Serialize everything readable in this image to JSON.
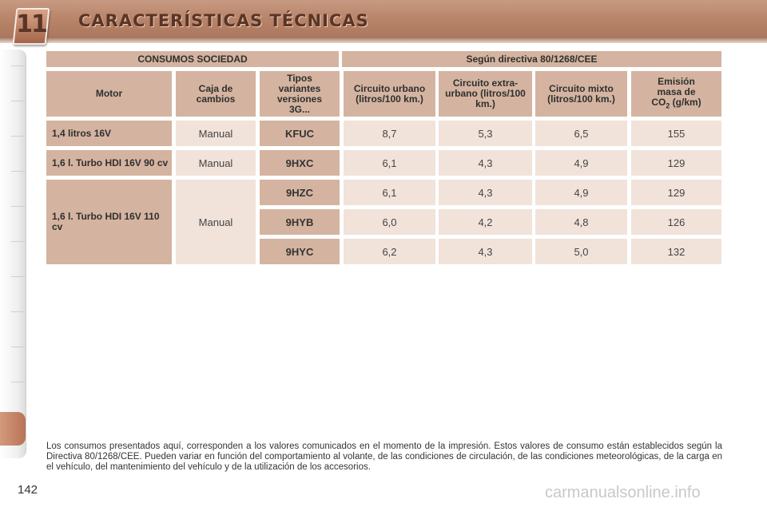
{
  "header": {
    "chapter": "11",
    "title": "CARACTERÍSTICAS TÉCNICAS"
  },
  "table": {
    "title_left": "CONSUMOS SOCIEDAD",
    "title_right": "Según directiva 80/1268/CEE",
    "col_motor": "Motor",
    "col_caja": "Caja de cambios",
    "col_tipos": "Tipos variantes versiones 3G...",
    "col_urbano": "Circuito urbano (litros/100 km.)",
    "col_extra": "Circuito extra-urbano (litros/100 km.)",
    "col_mixto": "Circuito mixto (litros/100 km.)",
    "col_emision_a": "Emisión masa de",
    "col_emision_b": "CO",
    "col_emision_sub": "2",
    "col_emision_c": " (g/km)",
    "engine1": "1,4 litros 16V",
    "engine2": "1,6 l. Turbo HDI 16V 90 cv",
    "engine3": "1,6 l. Turbo HDI 16V 110 cv",
    "rows": [
      {
        "gearbox": "Manual",
        "code": "KFUC",
        "urbano": "8,7",
        "extra": "5,3",
        "mixto": "6,5",
        "co2": "155"
      },
      {
        "gearbox": "Manual",
        "code": "9HXC",
        "urbano": "6,1",
        "extra": "4,3",
        "mixto": "4,9",
        "co2": "129"
      },
      {
        "gearbox": "Manual",
        "code": "9HZC",
        "urbano": "6,1",
        "extra": "4,3",
        "mixto": "4,9",
        "co2": "129"
      },
      {
        "code": "9HYB",
        "urbano": "6,0",
        "extra": "4,2",
        "mixto": "4,8",
        "co2": "126"
      },
      {
        "code": "9HYC",
        "urbano": "6,2",
        "extra": "4,3",
        "mixto": "5,0",
        "co2": "132"
      }
    ]
  },
  "footnote": "Los consumos presentados aquí, corresponden a los valores comunicados en el momento de la impresión. Estos valores de consumo están establecidos según la Directiva 80/1268/CEE. Pueden variar en función del comportamiento al volante, de las condiciones de circulación, de las condiciones meteorológicas, de la carga en el vehículo, del mantenimiento del vehículo y de la utilización de los accesorios.",
  "page_number": "142",
  "watermark": "carmanualsonline.info"
}
